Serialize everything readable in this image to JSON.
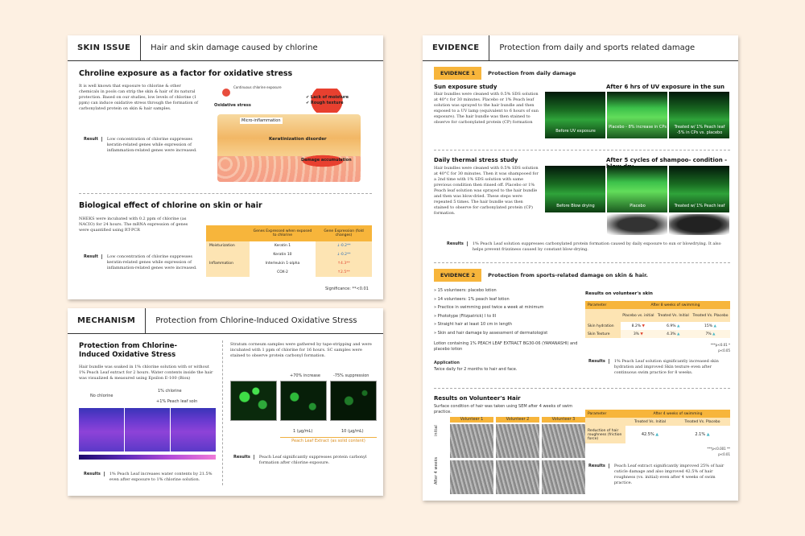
{
  "skin": {
    "tag": "SKIN ISSUE",
    "title": "Hair and skin damage caused by chlorine",
    "s1_title": "Chroline exposure as a factor for oxidative stress",
    "s1_text": "It is well known that exposure to chlorine & other chemicals in pools can strip the skin & hair of its natural protection. Based on our studies, low levels of chlorine (1 ppm) can induce oxidative stress through the formation of carbonylated protein on skin & hair samples.",
    "result_label": "Result",
    "s1_result": "Low concentration of chlorine suppresses keratin-related genes while expression of inflammation-related genes were increased.",
    "diagram": {
      "continuous": "Continuous chlorine exposure",
      "oxidative": "Oxidative stress",
      "lack": "✔ Lack of moisture",
      "rough": "✔ Rough texture",
      "micro": "Micro-inflammation",
      "keratin": "Keratinization disorder",
      "damage": "Damage accumulation"
    },
    "s2_title": "Biological effect of chlorine on skin or hair",
    "s2_text": "NHEKS were incubated with 0.2 ppm of chlorine (as NACIO) for 24 hours. The mRNA expression of genes were quantified using RT-PCR",
    "s2_result": "Low concentration of chlorine suppresses keratin-related genes while expression of inflammation-related genes were increased.",
    "table": {
      "h1": "Genes Expressed when exposed to chlorine",
      "h2": "Gene Expression (fold changes)",
      "rows": [
        {
          "group": "Moisturization",
          "gene": "Keratin 1",
          "val": "↓-0.2**"
        },
        {
          "group": "",
          "gene": "Keratin 10",
          "val": "↓-0.2**"
        },
        {
          "group": "Inflammation",
          "gene": "Interleukin 1-alpha",
          "val": "↑4.3**"
        },
        {
          "group": "",
          "gene": "COX-2",
          "val": "↑2.5**"
        }
      ],
      "note": "Significance: **<0.01"
    }
  },
  "mech": {
    "tag": "MECHANISM",
    "title": "Protection from Chlorine-Induced Oxidative Stress",
    "s_title": "Protection from Chlorine-Induced Oxidative Stress",
    "text1": "Hair bundle was soaked in 1% chlorine solution with or without 1% Peach Leaf extract for 2 hours. Water contents inside the hair was visualized & measured using Epsilon E-100 (Biox)",
    "no_chlorine": "No chlorine",
    "one_chlorine": "1% chlorine",
    "peach_soln": "+1% Peach leaf soln",
    "result_label": "Results",
    "result1": "1% Peach Leaf increases water contents by 21.5% even after exposure to 1% chlorine solution.",
    "text2": "Stratum corneum samples were gathered by tape-stripping and were incubated with 1 ppm of chlorine for 16 hours. SC samples were stained to observe protein carbonyl formation.",
    "increase": "+70% increase",
    "suppression": "-75% suppression",
    "conc1": "1 (μg/mL)",
    "conc2": "10 (μg/mL)",
    "extract_label": "Peach Leaf Extract (as solid content)",
    "result2": "Peach Leaf significantly suppresses protein carbonyl formation after chlorine exposure."
  },
  "evidence": {
    "tag": "EVIDENCE",
    "title": "Protection from daily and sports related damage",
    "ev1_badge": "EVIDENCE 1",
    "ev1_title": "Protection from daily damage",
    "sun_title": "Sun exposure study",
    "sun_text": "Hair bundles were cleaned with 0.5% SDS solution at 40°c for 30 minutes. Placebo or 1% Peach leaf solution was sprayed to the hair bundle and then exposed to a UV lamp (equivalent to 6 hours of sun exposure). The hair bundle was then stained to observe for carbonylated protein (CP) formation",
    "uv_title": "After 6 hrs of UV exposure in the sun",
    "uv_cap1": "Before UV exposure",
    "uv_cap2": "Placebo - 8% increase in CPs",
    "uv_cap3": "Treated w/ 1% Peach leaf -5% in CPs vs. placebo",
    "thermal_title": "Daily thermal stress study",
    "thermal_text": "Hair bundles were cleaned with 0.5% SDS solution at 40°C for 30 minutes. Then it was shampooed for a 2nd time with 1% SDS solution with same previous condition then rinsed off. Placebo or 1% Peach leaf solution was sprayed to the hair bundle and then was blow-dried. These steps were repeated 5 times. The hair bundle was then stained to observe for carbonylated protein (CP) formation.",
    "blow_title": "After 5 cycles of shampoo- condition - blow dry",
    "blow_cap1": "Before Blow drying",
    "blow_cap2": "Placebo",
    "blow_cap3": "Treated w/ 1% Peach leaf",
    "ev1_result": "1% Peach Leaf solution suppresses carbonylated protein formation caused by daily exposure to sun or blowdrying. It also helps prevent frizziness caused by constant blow-drying.",
    "ev2_badge": "EVIDENCE 2",
    "ev2_title": "Protection from sports-related damage on skin & hair.",
    "bullets": [
      "15 volunteers: placebo lotion",
      "14 volunteers: 1% peach leaf lotion",
      "Practice in swimming pool twice a week at minimum",
      "Phototype (Fitzpatrick) I to III",
      "Straight hair at least 10 cm in length",
      "Skin and hair damage by assessment of dermatologist"
    ],
    "lotion": "Lotion containing 1% PEACH LEAF EXTRACT BG30-06 (YAMANASHI) and placebo lotion",
    "application_label": "Application",
    "application": "Twice daily for 2 months to hair and face.",
    "skin_results_title": "Results on volunteer's skin",
    "skin_table": {
      "param": "Parameter",
      "after": "After 8 weeks of swimming",
      "c1": "Placebo vs. initial",
      "c2": "Treated Vs. Initial",
      "c3": "Treated Vs. Placebo",
      "rows": [
        {
          "name": "Skin hydration",
          "v1": "8.2%",
          "v2": "6.9%",
          "v3": "15%"
        },
        {
          "name": "Skin Texture",
          "v1": "3%",
          "v2": "4.3%",
          "v3": "7%"
        }
      ],
      "note": "***p<0.01 * p<0.05"
    },
    "skin_result": "1% Peach Leaf solution significantly increased skin hydration and improved Skin texture even after continuous swim practice for 8 weeks.",
    "hair_title": "Results on Volunteer's Hair",
    "hair_text": "Surface condition of hair was taken using SEM after 4 weeks of swim practice.",
    "vol1": "Volunteer 1",
    "vol2": "Volunteer 2",
    "vol3": "Volunteer 3",
    "initial": "initial",
    "after4": "After 4 weeks",
    "hair_table": {
      "param": "Parameter",
      "after": "After 4 weeks of swimming",
      "c1": "Treated Vs. Initial",
      "c2": "Treated Vs. Placebo",
      "row_name": "Reduction of hair roughness (friction force)",
      "v1": "42.5%",
      "v2": "2.1%",
      "note": "***p<0.001 ** p<0.01"
    },
    "hair_result": "Peach Leaf extract significantly improved 25% of hair cuticle damage and also improved 42.5% of hair roughness (vs. initial) even after 4 weeks of swim practice.",
    "result_label": "Results"
  }
}
